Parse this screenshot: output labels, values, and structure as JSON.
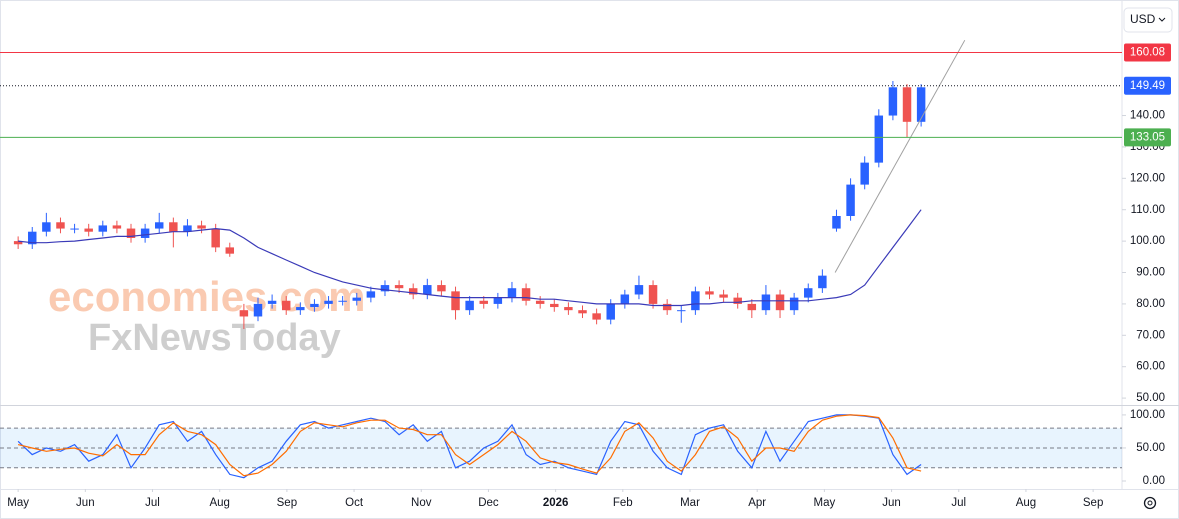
{
  "chart_data": {
    "type": "candlestick",
    "currency": "USD",
    "watermark": [
      "economies.com",
      "FxNewsToday"
    ],
    "up_color": "#2962ff",
    "down_color": "#ef5350",
    "x": [
      0,
      0.21,
      0.42,
      0.63,
      0.84,
      1.05,
      1.26,
      1.47,
      1.68,
      1.89,
      2.1,
      2.31,
      2.52,
      2.73,
      2.94,
      3.15,
      3.36,
      3.57,
      3.78,
      3.99,
      4.2,
      4.41,
      4.62,
      4.83,
      5.04,
      5.25,
      5.46,
      5.67,
      5.88,
      6.09,
      6.3,
      6.51,
      6.72,
      6.93,
      7.14,
      7.35,
      7.56,
      7.77,
      7.98,
      8.19,
      8.4,
      8.61,
      8.82,
      9.03,
      9.24,
      9.45,
      9.66,
      9.87,
      10.08,
      10.29,
      10.5,
      10.71,
      10.92,
      11.13,
      11.34,
      11.55,
      11.76,
      11.97,
      12.18,
      12.39,
      12.6,
      12.81,
      13.02,
      13.23,
      13.44
    ],
    "open": [
      100,
      99,
      103,
      106,
      104,
      104,
      103,
      105,
      104,
      101,
      104,
      106,
      103,
      105,
      104,
      98,
      78,
      76,
      80,
      81,
      78,
      79,
      80,
      81,
      81,
      82,
      84,
      86,
      85,
      83,
      86,
      84,
      78,
      81,
      80,
      82,
      85,
      81,
      80,
      79,
      78,
      77,
      75,
      80,
      83,
      86,
      80,
      78,
      78,
      84,
      83,
      82,
      80,
      78,
      83,
      78,
      82,
      85,
      104,
      108,
      118,
      125,
      140,
      149,
      138
    ],
    "high": [
      101.5,
      104.5,
      109,
      107.5,
      105.5,
      105.5,
      106.5,
      106.5,
      105.5,
      105.5,
      109,
      107.5,
      107,
      106.5,
      105.5,
      99.5,
      80,
      82,
      83,
      82.5,
      80.5,
      81.5,
      82.5,
      82.5,
      83.5,
      85.5,
      87.5,
      87.5,
      86.5,
      88,
      87.5,
      85.5,
      82.5,
      82.5,
      83.5,
      87,
      86.5,
      82.5,
      81.5,
      80.5,
      79.5,
      78.5,
      81.5,
      84.5,
      89,
      87.5,
      81.5,
      79.5,
      85.5,
      85.5,
      84.5,
      83.5,
      81.5,
      86,
      84.5,
      83.5,
      86.5,
      91,
      110,
      120,
      127,
      142,
      151,
      150,
      150
    ],
    "low": [
      97.5,
      97.5,
      101.5,
      102.5,
      102.5,
      101.5,
      101.5,
      102.5,
      99.5,
      99.5,
      102.5,
      98,
      101.5,
      102.5,
      96.5,
      95,
      72,
      74.5,
      78.5,
      76.5,
      76.5,
      77.5,
      78.5,
      79.5,
      79.5,
      80.5,
      82.5,
      83.5,
      81.5,
      81.5,
      82.5,
      75,
      76.5,
      78.5,
      78.5,
      80.5,
      79.5,
      78.5,
      77.5,
      76.5,
      75.5,
      73.5,
      73.5,
      78.5,
      81.5,
      78.5,
      76.5,
      74,
      76.5,
      81.5,
      80.5,
      78.5,
      75.5,
      76.5,
      75.5,
      76.5,
      80.5,
      83.5,
      103,
      106.5,
      116.5,
      123.5,
      138.5,
      133,
      136.5
    ],
    "close": [
      99,
      103,
      106,
      104,
      104,
      103,
      105,
      104,
      101,
      104,
      106,
      103,
      105,
      104,
      98,
      96,
      76,
      80,
      81,
      78,
      79,
      80,
      81,
      81,
      82,
      84,
      86,
      85,
      83,
      86,
      84,
      78,
      81,
      80,
      82,
      85,
      81,
      80,
      79,
      78,
      77,
      75,
      80,
      83,
      86,
      80,
      78,
      78,
      84,
      83,
      82,
      80,
      78,
      83,
      78,
      82,
      85,
      89,
      108,
      118,
      125,
      140,
      149,
      138,
      149
    ],
    "moving_average": {
      "color": "#3a3ab8",
      "values": [
        100,
        99.5,
        99.5,
        99.8,
        100,
        100.5,
        101,
        101.5,
        101.5,
        102,
        102.5,
        103,
        103,
        103.5,
        104,
        103.5,
        101,
        98,
        96,
        94,
        92,
        90,
        88.5,
        87,
        86,
        85,
        84.5,
        84,
        83.5,
        83,
        82.5,
        82,
        82,
        82,
        82,
        82,
        82,
        81.5,
        81.5,
        81,
        80.5,
        80,
        80,
        80,
        80,
        79.5,
        79.5,
        79.5,
        80,
        80,
        80.5,
        80.5,
        81,
        81,
        81,
        81,
        81,
        81.5,
        82,
        83,
        86,
        92,
        98,
        104,
        110
      ]
    },
    "price_lines": [
      {
        "value": 160.08,
        "color": "#f23645"
      },
      {
        "value": 149.49,
        "color": "#2962ff"
      },
      {
        "value": 133.05,
        "color": "#4caf50"
      }
    ],
    "trendline": {
      "x": [
        12.16,
        14.09
      ],
      "y": [
        90,
        164
      ],
      "color": "#a0a0a0"
    },
    "xlim": [
      -0.27,
      16.4
    ],
    "xticks": [
      {
        "value": 0,
        "label": "May"
      },
      {
        "value": 1,
        "label": "Jun"
      },
      {
        "value": 2,
        "label": "Jul"
      },
      {
        "value": 3,
        "label": "Aug"
      },
      {
        "value": 4,
        "label": "Sep"
      },
      {
        "value": 5,
        "label": "Oct"
      },
      {
        "value": 6,
        "label": "Nov"
      },
      {
        "value": 7,
        "label": "Dec"
      },
      {
        "value": 8,
        "label": "2026"
      },
      {
        "value": 9,
        "label": "Feb"
      },
      {
        "value": 10,
        "label": "Mar"
      },
      {
        "value": 11,
        "label": "Apr"
      },
      {
        "value": 12,
        "label": "May"
      },
      {
        "value": 13,
        "label": "Jun"
      },
      {
        "value": 14,
        "label": "Jul"
      },
      {
        "value": 15,
        "label": "Aug"
      },
      {
        "value": 16,
        "label": "Sep"
      }
    ],
    "ylim": [
      47.8,
      176.8
    ],
    "yticks": [
      {
        "value": 50,
        "label": "50.00"
      },
      {
        "value": 60,
        "label": "60.00"
      },
      {
        "value": 70,
        "label": "70.00"
      },
      {
        "value": 80,
        "label": "80.00"
      },
      {
        "value": 90,
        "label": "90.00"
      },
      {
        "value": 100,
        "label": "100.00"
      },
      {
        "value": 110,
        "label": "110.00"
      },
      {
        "value": 120,
        "label": "120.00"
      },
      {
        "value": 130,
        "label": "130.00"
      },
      {
        "value": 140,
        "label": "140.00"
      }
    ],
    "indicator": {
      "type": "line",
      "ylim": [
        -10.6,
        115
      ],
      "yticks": [
        {
          "value": 0,
          "label": "0.00"
        },
        {
          "value": 50,
          "label": "50.00"
        },
        {
          "value": 100,
          "label": "100.00"
        }
      ],
      "levels": [
        20,
        50,
        80
      ],
      "series": [
        {
          "color": "#2962ff",
          "values": [
            60,
            40,
            50,
            45,
            55,
            30,
            40,
            70,
            20,
            50,
            85,
            90,
            60,
            75,
            40,
            10,
            5,
            20,
            30,
            60,
            85,
            90,
            80,
            85,
            90,
            95,
            90,
            70,
            85,
            60,
            75,
            20,
            30,
            50,
            60,
            85,
            40,
            25,
            30,
            20,
            15,
            10,
            60,
            90,
            85,
            45,
            20,
            10,
            70,
            80,
            85,
            45,
            20,
            75,
            30,
            60,
            90,
            95,
            100,
            100,
            98,
            95,
            40,
            10,
            25
          ]
        },
        {
          "color": "#ff6d00",
          "values": [
            55,
            50,
            45,
            48,
            50,
            42,
            38,
            55,
            40,
            40,
            70,
            88,
            75,
            70,
            55,
            25,
            8,
            12,
            25,
            45,
            75,
            88,
            85,
            82,
            88,
            92,
            92,
            80,
            78,
            70,
            70,
            40,
            25,
            40,
            55,
            75,
            60,
            35,
            28,
            25,
            18,
            12,
            35,
            75,
            88,
            65,
            30,
            15,
            40,
            75,
            82,
            65,
            30,
            50,
            50,
            45,
            75,
            92,
            98,
            100,
            99,
            96,
            65,
            20,
            15
          ]
        }
      ]
    }
  }
}
